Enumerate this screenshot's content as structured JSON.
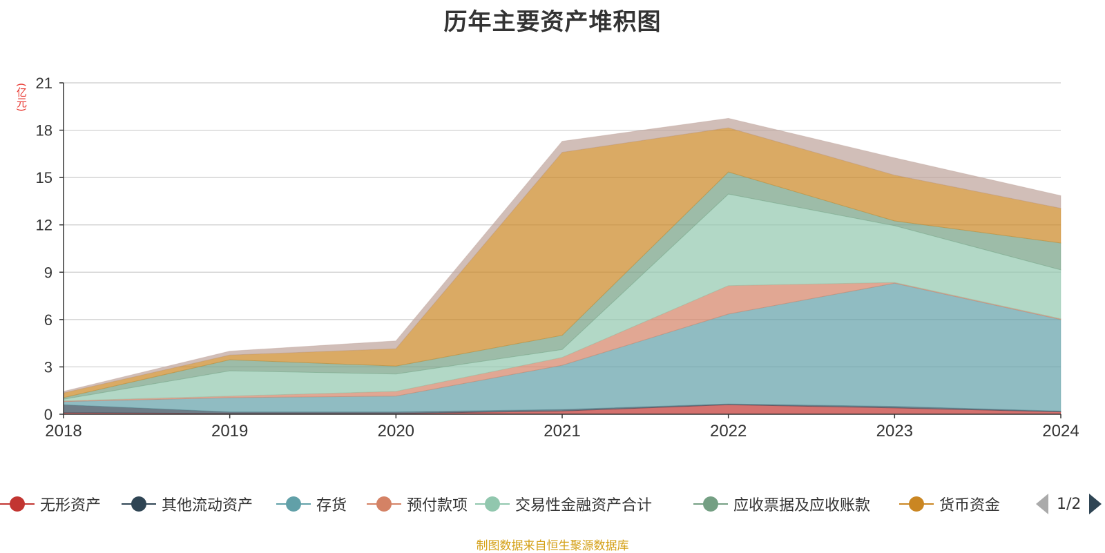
{
  "title": "历年主要资产堆积图",
  "unit_label": "(亿元)",
  "footer": "制图数据来自恒生聚源数据库",
  "legend": {
    "items": [
      {
        "label": "无形资产",
        "color": "#c23531"
      },
      {
        "label": "其他流动资产",
        "color": "#2f4554"
      },
      {
        "label": "存货",
        "color": "#61a0a8"
      },
      {
        "label": "预付款项",
        "color": "#d48265"
      },
      {
        "label": "交易性金融资产合计",
        "color": "#91c7ae"
      },
      {
        "label": "应收票据及应收账款",
        "color": "#749f83"
      },
      {
        "label": "货币资金",
        "color": "#ca8622"
      }
    ],
    "page": "1/2",
    "prev_icon": "triangle-left-icon",
    "next_icon": "triangle-right-icon"
  },
  "chart_data": {
    "type": "area",
    "stacked": true,
    "x": [
      "2018",
      "2019",
      "2020",
      "2021",
      "2022",
      "2023",
      "2024"
    ],
    "ylim": [
      0,
      21
    ],
    "yticks": [
      0,
      3,
      6,
      9,
      12,
      15,
      18,
      21
    ],
    "grid": true,
    "series": [
      {
        "name": "无形资产",
        "color": "#c23531",
        "values": [
          0.1,
          0.05,
          0.05,
          0.2,
          0.6,
          0.4,
          0.15
        ]
      },
      {
        "name": "其他流动资产",
        "color": "#2f4554",
        "values": [
          0.5,
          0.1,
          0.1,
          0.1,
          0.05,
          0.1,
          0.05
        ]
      },
      {
        "name": "存货",
        "color": "#61a0a8",
        "values": [
          0.2,
          0.9,
          1.0,
          2.8,
          5.7,
          7.8,
          5.8
        ]
      },
      {
        "name": "预付款项",
        "color": "#d48265",
        "values": [
          0.05,
          0.1,
          0.3,
          0.5,
          1.8,
          0.05,
          0.05
        ]
      },
      {
        "name": "交易性金融资产合计",
        "color": "#91c7ae",
        "values": [
          0.1,
          1.6,
          1.1,
          0.5,
          5.8,
          3.6,
          3.1
        ]
      },
      {
        "name": "应收票据及应收账款",
        "color": "#749f83",
        "values": [
          0.1,
          0.7,
          0.5,
          0.9,
          1.4,
          0.3,
          1.7
        ]
      },
      {
        "name": "货币资金",
        "color": "#ca8622",
        "values": [
          0.3,
          0.3,
          1.1,
          11.6,
          2.8,
          2.9,
          2.2
        ]
      },
      {
        "color": "#bda29a",
        "values": [
          0.1,
          0.25,
          0.5,
          0.7,
          0.6,
          1.1,
          0.8
        ]
      }
    ]
  }
}
